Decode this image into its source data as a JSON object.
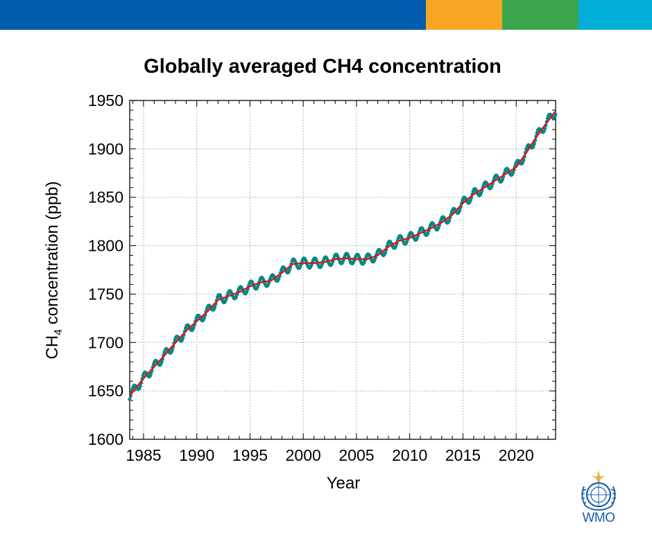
{
  "header": {
    "colors": [
      "#005bac",
      "#f6a623",
      "#3aa54a",
      "#00aed6"
    ]
  },
  "logo": {
    "text": "WMO",
    "name": "wmo-emblem-icon"
  },
  "chart_data": {
    "type": "line",
    "title": "Globally averaged CH4 concentration",
    "ylabel_main": "CH",
    "ylabel_sub": "4",
    "ylabel_rest": " concentration (ppb)",
    "xlabel": "Year",
    "xlim": [
      1983.7,
      2023.7
    ],
    "ylim": [
      1600,
      1950
    ],
    "x_ticks": [
      1985,
      1990,
      1995,
      2000,
      2005,
      2010,
      2015,
      2020
    ],
    "y_ticks": [
      1600,
      1650,
      1700,
      1750,
      1800,
      1850,
      1900,
      1950
    ],
    "x_tick_labels": [
      "1985",
      "1990",
      "1995",
      "2000",
      "2005",
      "2010",
      "2015",
      "2020"
    ],
    "y_tick_labels": [
      "1600",
      "1650",
      "1700",
      "1750",
      "1800",
      "1850",
      "1900",
      "1950"
    ],
    "grid": true,
    "series": [
      {
        "role": "monthly",
        "color": "#00888a",
        "style": "points+line",
        "seasonal_amplitude": 5,
        "trend": {
          "x": [
            1983.7,
            1985,
            1986,
            1987,
            1988,
            1989,
            1990,
            1991,
            1992,
            1993,
            1994,
            1995,
            1996,
            1997,
            1998,
            1999,
            2000,
            2001,
            2002,
            2003,
            2004,
            2005,
            2006,
            2007,
            2008,
            2009,
            2010,
            2011,
            2012,
            2013,
            2014,
            2015,
            2016,
            2017,
            2018,
            2019,
            2020,
            2021,
            2022,
            2023,
            2023.7
          ],
          "y": [
            1645,
            1663,
            1675,
            1687,
            1700,
            1712,
            1722,
            1732,
            1744,
            1748,
            1752,
            1758,
            1762,
            1764,
            1772,
            1781,
            1782,
            1782,
            1783,
            1786,
            1787,
            1786,
            1786,
            1790,
            1799,
            1805,
            1808,
            1813,
            1818,
            1824,
            1832,
            1844,
            1853,
            1860,
            1867,
            1874,
            1881,
            1897,
            1914,
            1929,
            1939
          ]
        }
      },
      {
        "role": "trend",
        "color": "#d7191c",
        "style": "line"
      }
    ]
  }
}
